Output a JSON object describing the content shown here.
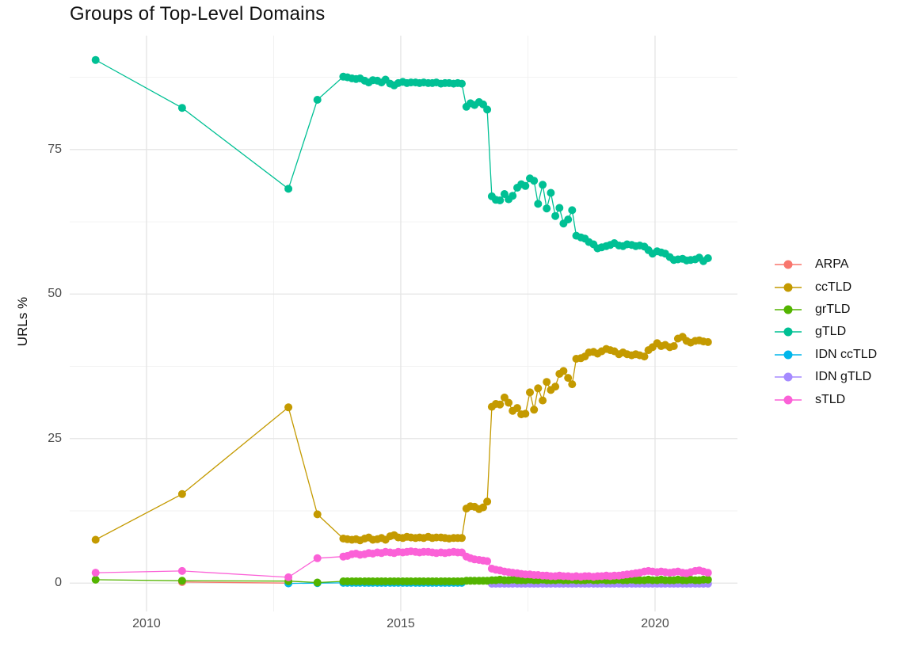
{
  "chart_data": {
    "type": "line",
    "title": "Groups of Top-Level Domains",
    "xlabel": "",
    "ylabel": "URLs %",
    "legend_position": "right",
    "grid": true,
    "background": "#ffffff",
    "grid_major_color": "#e4e4e4",
    "grid_minor_color": "#f0f0f0",
    "tick_text_color": "#4d4d4d",
    "x_ticks": {
      "major": [
        2010,
        2015,
        2020
      ],
      "minor": [
        2012.5,
        2017.5
      ],
      "labels": [
        "2010",
        "2015",
        "2020"
      ]
    },
    "y_ticks": {
      "major": [
        0,
        25,
        50,
        75
      ],
      "minor": [
        12.5,
        37.5,
        62.5,
        87.5
      ],
      "labels": [
        "0",
        "25",
        "50",
        "75"
      ]
    },
    "xlim": [
      2008.49,
      2021.62
    ],
    "ylim": [
      -4.9,
      94.7
    ],
    "x_monthly": [
      2013.87,
      2013.95,
      2014.04,
      2014.12,
      2014.2,
      2014.29,
      2014.37,
      2014.45,
      2014.54,
      2014.62,
      2014.7,
      2014.79,
      2014.87,
      2014.95,
      2015.04,
      2015.12,
      2015.2,
      2015.29,
      2015.37,
      2015.45,
      2015.54,
      2015.62,
      2015.7,
      2015.79,
      2015.87,
      2015.95,
      2016.04,
      2016.12,
      2016.2,
      2016.29,
      2016.37,
      2016.45,
      2016.54,
      2016.62,
      2016.7,
      2016.79,
      2016.87,
      2016.95,
      2017.04,
      2017.12,
      2017.2,
      2017.29,
      2017.37,
      2017.45,
      2017.54,
      2017.62,
      2017.7,
      2017.79,
      2017.87,
      2017.95,
      2018.04,
      2018.12,
      2018.2,
      2018.29,
      2018.37,
      2018.45,
      2018.54,
      2018.62,
      2018.7,
      2018.79,
      2018.87,
      2018.95,
      2019.04,
      2019.12,
      2019.2,
      2019.29,
      2019.37,
      2019.45,
      2019.54,
      2019.62,
      2019.7,
      2019.79,
      2019.87,
      2019.95,
      2020.04,
      2020.12,
      2020.2,
      2020.29,
      2020.37,
      2020.45,
      2020.54,
      2020.62,
      2020.7,
      2020.79,
      2020.87,
      2020.95,
      2021.04
    ],
    "draw_order": [
      0,
      4,
      5,
      2,
      1,
      3,
      6
    ],
    "series": [
      {
        "name": "ARPA",
        "color": "#F8766D",
        "early": [
          [
            2010.7,
            0.18
          ],
          [
            2012.79,
            0.0
          ]
        ],
        "values": null
      },
      {
        "name": "ccTLD",
        "color": "#C49A00",
        "early": [
          [
            2009.0,
            7.5
          ],
          [
            2010.7,
            15.4
          ],
          [
            2012.79,
            30.4
          ],
          [
            2013.36,
            11.9
          ]
        ],
        "values": [
          7.7,
          7.6,
          7.5,
          7.6,
          7.4,
          7.7,
          7.9,
          7.5,
          7.6,
          7.8,
          7.5,
          8.1,
          8.3,
          7.9,
          7.8,
          8.0,
          7.9,
          7.8,
          7.9,
          7.8,
          8.0,
          7.8,
          7.9,
          7.9,
          7.8,
          7.7,
          7.8,
          7.8,
          7.8,
          12.9,
          13.3,
          13.2,
          12.8,
          13.1,
          14.1,
          30.5,
          31.0,
          30.9,
          32.1,
          31.2,
          29.8,
          30.3,
          29.2,
          29.3,
          33.0,
          30.0,
          33.7,
          31.6,
          34.8,
          33.4,
          34.0,
          36.2,
          36.7,
          35.5,
          34.4,
          38.8,
          38.9,
          39.2,
          39.9,
          40.0,
          39.7,
          40.1,
          40.5,
          40.3,
          40.1,
          39.6,
          39.9,
          39.6,
          39.4,
          39.6,
          39.4,
          39.2,
          40.3,
          40.8,
          41.5,
          41.0,
          41.2,
          40.8,
          41.0,
          42.3,
          42.6,
          41.9,
          41.6,
          41.9,
          42.0,
          41.8,
          41.7
        ]
      },
      {
        "name": "grTLD",
        "color": "#53B400",
        "early": [
          [
            2009.0,
            0.6
          ],
          [
            2010.7,
            0.4
          ],
          [
            2012.79,
            0.35
          ],
          [
            2013.36,
            0.1
          ]
        ],
        "values": [
          0.3,
          0.3,
          0.3,
          0.3,
          0.3,
          0.3,
          0.3,
          0.3,
          0.3,
          0.3,
          0.3,
          0.3,
          0.3,
          0.3,
          0.3,
          0.3,
          0.3,
          0.3,
          0.3,
          0.3,
          0.3,
          0.3,
          0.3,
          0.3,
          0.3,
          0.3,
          0.3,
          0.3,
          0.3,
          0.4,
          0.4,
          0.4,
          0.4,
          0.4,
          0.4,
          0.5,
          0.5,
          0.6,
          0.5,
          0.5,
          0.6,
          0.5,
          0.5,
          0.5,
          0.6,
          0.5,
          0.5,
          0.6,
          0.5,
          0.5,
          0.5,
          0.6,
          0.5,
          0.5,
          0.6,
          0.5,
          0.5,
          0.5,
          0.6,
          0.5,
          0.5,
          0.6,
          0.5,
          0.5,
          0.5,
          0.6,
          0.5,
          0.5,
          0.6,
          0.5,
          0.5,
          0.5,
          0.6,
          0.5,
          0.5,
          0.6,
          0.5,
          0.5,
          0.5,
          0.6,
          0.5,
          0.5,
          0.6,
          0.5,
          0.5,
          0.6,
          0.6
        ]
      },
      {
        "name": "gTLD",
        "color": "#00C094",
        "early": [
          [
            2009.0,
            90.5
          ],
          [
            2010.7,
            82.2
          ],
          [
            2012.79,
            68.2
          ],
          [
            2013.36,
            83.6
          ]
        ],
        "values": [
          87.6,
          87.5,
          87.3,
          87.2,
          87.3,
          86.9,
          86.6,
          87.0,
          86.9,
          86.6,
          87.1,
          86.4,
          86.1,
          86.5,
          86.7,
          86.5,
          86.6,
          86.6,
          86.5,
          86.6,
          86.5,
          86.5,
          86.6,
          86.4,
          86.5,
          86.5,
          86.4,
          86.5,
          86.4,
          82.4,
          83.0,
          82.7,
          83.2,
          82.8,
          81.9,
          66.9,
          66.3,
          66.2,
          67.3,
          66.4,
          67.0,
          68.4,
          69.0,
          68.7,
          70.0,
          69.6,
          65.6,
          68.9,
          64.8,
          67.5,
          63.5,
          64.9,
          62.2,
          62.9,
          64.5,
          60.1,
          59.8,
          59.6,
          59.0,
          58.6,
          57.9,
          58.1,
          58.3,
          58.5,
          58.8,
          58.4,
          58.3,
          58.6,
          58.5,
          58.3,
          58.4,
          58.2,
          57.6,
          57.0,
          57.4,
          57.2,
          57.0,
          56.4,
          55.9,
          56.0,
          56.1,
          55.8,
          55.9,
          56.0,
          56.3,
          55.7,
          56.2
        ]
      },
      {
        "name": "IDN ccTLD",
        "color": "#00B6EB",
        "early": [
          [
            2012.79,
            -0.05
          ],
          [
            2013.36,
            0.0
          ]
        ],
        "values": [
          0.05,
          0.05,
          0.05,
          0.05,
          0.05,
          0.05,
          0.05,
          0.05,
          0.05,
          0.05,
          0.05,
          0.05,
          0.05,
          0.05,
          0.05,
          0.05,
          0.05,
          0.05,
          0.05,
          0.05,
          0.05,
          0.05,
          0.05,
          0.05,
          0.05,
          0.05,
          0.05,
          0.05,
          0.05,
          null,
          null,
          null,
          null,
          null,
          null,
          null,
          null,
          null,
          null,
          null,
          null,
          null,
          null,
          null,
          null,
          null,
          null,
          null,
          null,
          null,
          null,
          null,
          null,
          null,
          null,
          null,
          null,
          null,
          null,
          null,
          null,
          null,
          null,
          null,
          null,
          null,
          null,
          null,
          null,
          null,
          null,
          null,
          null,
          null,
          null,
          null,
          null,
          null,
          null,
          null,
          null,
          null,
          null,
          null,
          null,
          null,
          null
        ]
      },
      {
        "name": "IDN gTLD",
        "color": "#A58AFF",
        "early": [],
        "values": [
          null,
          null,
          null,
          null,
          null,
          null,
          null,
          null,
          null,
          null,
          null,
          null,
          null,
          null,
          null,
          null,
          null,
          null,
          null,
          null,
          null,
          null,
          null,
          null,
          null,
          null,
          null,
          null,
          null,
          null,
          null,
          null,
          null,
          null,
          null,
          -0.1,
          -0.1,
          -0.1,
          -0.1,
          -0.1,
          -0.1,
          -0.1,
          -0.1,
          -0.1,
          -0.1,
          -0.1,
          -0.1,
          -0.1,
          -0.1,
          -0.1,
          -0.1,
          -0.1,
          -0.1,
          -0.1,
          -0.1,
          -0.1,
          -0.1,
          -0.1,
          -0.1,
          -0.1,
          -0.1,
          -0.1,
          -0.1,
          -0.1,
          -0.1,
          -0.1,
          -0.1,
          -0.1,
          -0.1,
          -0.1,
          -0.1,
          -0.1,
          -0.1,
          -0.1,
          -0.1,
          -0.1,
          -0.1,
          -0.1,
          -0.1,
          -0.1,
          -0.1,
          -0.1,
          -0.1,
          -0.1,
          -0.1,
          -0.1,
          -0.1
        ]
      },
      {
        "name": "sTLD",
        "color": "#FB61D7",
        "early": [
          [
            2009.0,
            1.8
          ],
          [
            2010.7,
            2.1
          ],
          [
            2012.79,
            1.0
          ],
          [
            2013.36,
            4.3
          ]
        ],
        "values": [
          4.6,
          4.7,
          5.0,
          5.1,
          4.9,
          5.0,
          5.2,
          5.1,
          5.3,
          5.2,
          5.4,
          5.3,
          5.2,
          5.4,
          5.3,
          5.4,
          5.5,
          5.4,
          5.3,
          5.4,
          5.4,
          5.3,
          5.2,
          5.3,
          5.2,
          5.3,
          5.4,
          5.3,
          5.3,
          4.6,
          4.3,
          4.1,
          4.0,
          3.9,
          3.8,
          2.5,
          2.3,
          2.2,
          2.0,
          1.9,
          1.8,
          1.7,
          1.6,
          1.5,
          1.5,
          1.4,
          1.4,
          1.3,
          1.3,
          1.2,
          1.2,
          1.3,
          1.2,
          1.2,
          1.1,
          1.2,
          1.1,
          1.2,
          1.2,
          1.1,
          1.2,
          1.2,
          1.3,
          1.2,
          1.3,
          1.3,
          1.4,
          1.5,
          1.6,
          1.7,
          1.8,
          2.0,
          2.1,
          2.0,
          1.9,
          2.0,
          1.9,
          1.8,
          1.9,
          2.0,
          1.8,
          1.7,
          1.9,
          2.1,
          2.2,
          2.0,
          1.8
        ]
      }
    ]
  }
}
